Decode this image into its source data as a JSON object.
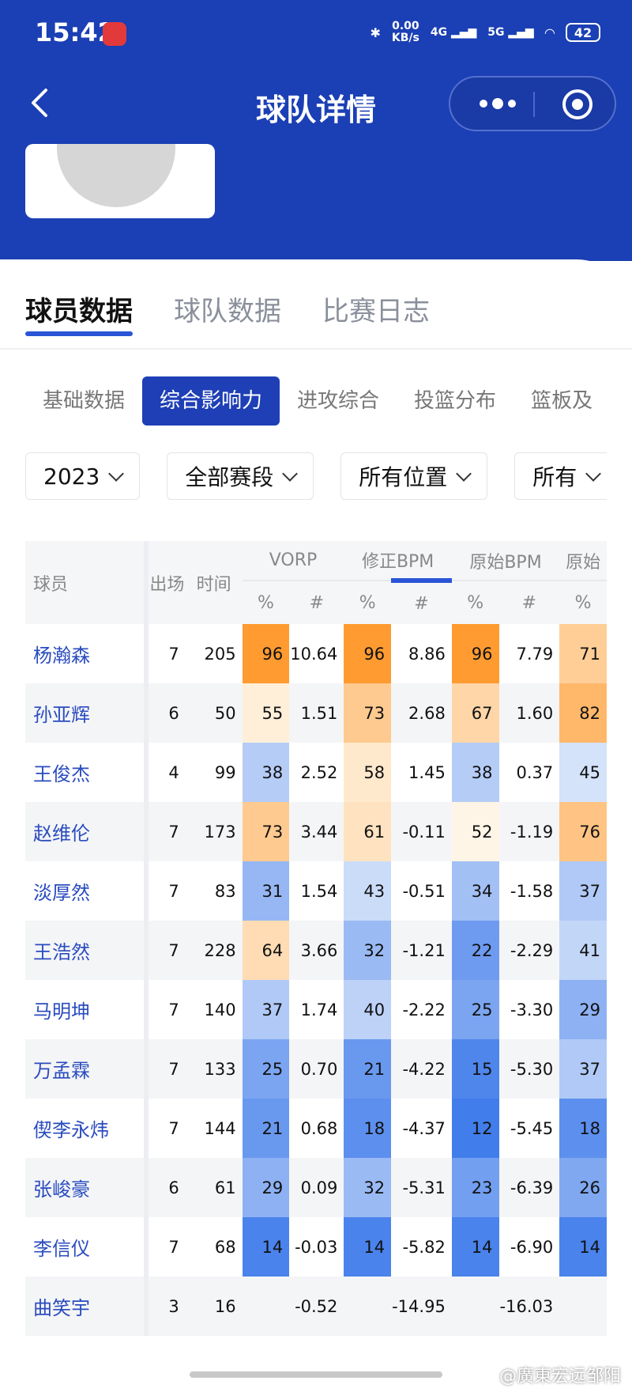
{
  "status_bar": {
    "time": "15:42",
    "speed": "0.00",
    "speed_unit": "KB/s",
    "net1": "4G",
    "net2": "5G",
    "battery": "42"
  },
  "nav": {
    "title": "球队详情"
  },
  "main_tabs": [
    "球员数据",
    "球队数据",
    "比赛日志"
  ],
  "sub_tabs": [
    "基础数据",
    "综合影响力",
    "进攻综合",
    "投篮分布",
    "篮板及"
  ],
  "filters": [
    "2023",
    "全部赛段",
    "所有位置",
    "所有"
  ],
  "table": {
    "col_player": "球员",
    "col_games": "出场",
    "col_minutes": "时间",
    "groups": [
      "VORP",
      "修正BPM",
      "原始BPM",
      "原始"
    ],
    "sub_pct": "%",
    "sub_num": "#",
    "rows": [
      {
        "name": "杨瀚森",
        "g": "7",
        "min": "205",
        "v_p": "96",
        "v_n": "10.64",
        "m_p": "96",
        "m_n": "8.86",
        "r_p": "96",
        "r_n": "7.79",
        "x_p": "71"
      },
      {
        "name": "孙亚辉",
        "g": "6",
        "min": "50",
        "v_p": "55",
        "v_n": "1.51",
        "m_p": "73",
        "m_n": "2.68",
        "r_p": "67",
        "r_n": "1.60",
        "x_p": "82"
      },
      {
        "name": "王俊杰",
        "g": "4",
        "min": "99",
        "v_p": "38",
        "v_n": "2.52",
        "m_p": "58",
        "m_n": "1.45",
        "r_p": "38",
        "r_n": "0.37",
        "x_p": "45"
      },
      {
        "name": "赵维伦",
        "g": "7",
        "min": "173",
        "v_p": "73",
        "v_n": "3.44",
        "m_p": "61",
        "m_n": "-0.11",
        "r_p": "52",
        "r_n": "-1.19",
        "x_p": "76"
      },
      {
        "name": "淡厚然",
        "g": "7",
        "min": "83",
        "v_p": "31",
        "v_n": "1.54",
        "m_p": "43",
        "m_n": "-0.51",
        "r_p": "34",
        "r_n": "-1.58",
        "x_p": "37"
      },
      {
        "name": "王浩然",
        "g": "7",
        "min": "228",
        "v_p": "64",
        "v_n": "3.66",
        "m_p": "32",
        "m_n": "-1.21",
        "r_p": "22",
        "r_n": "-2.29",
        "x_p": "41"
      },
      {
        "name": "马明坤",
        "g": "7",
        "min": "140",
        "v_p": "37",
        "v_n": "1.74",
        "m_p": "40",
        "m_n": "-2.22",
        "r_p": "25",
        "r_n": "-3.30",
        "x_p": "29"
      },
      {
        "name": "万孟霖",
        "g": "7",
        "min": "133",
        "v_p": "25",
        "v_n": "0.70",
        "m_p": "21",
        "m_n": "-4.22",
        "r_p": "15",
        "r_n": "-5.30",
        "x_p": "37"
      },
      {
        "name": "偰李永炜",
        "g": "7",
        "min": "144",
        "v_p": "21",
        "v_n": "0.68",
        "m_p": "18",
        "m_n": "-4.37",
        "r_p": "12",
        "r_n": "-5.45",
        "x_p": "18"
      },
      {
        "name": "张峻豪",
        "g": "6",
        "min": "61",
        "v_p": "29",
        "v_n": "0.09",
        "m_p": "32",
        "m_n": "-5.31",
        "r_p": "23",
        "r_n": "-6.39",
        "x_p": "26"
      },
      {
        "name": "李信仪",
        "g": "7",
        "min": "68",
        "v_p": "14",
        "v_n": "-0.03",
        "m_p": "14",
        "m_n": "-5.82",
        "r_p": "14",
        "r_n": "-6.90",
        "x_p": "14"
      },
      {
        "name": "曲笑宇",
        "g": "3",
        "min": "16",
        "v_p": "",
        "v_n": "-0.52",
        "m_p": "",
        "m_n": "-14.95",
        "r_p": "",
        "r_n": "-16.03",
        "x_p": ""
      }
    ]
  },
  "watermark": "@廣東宏远邹阳"
}
